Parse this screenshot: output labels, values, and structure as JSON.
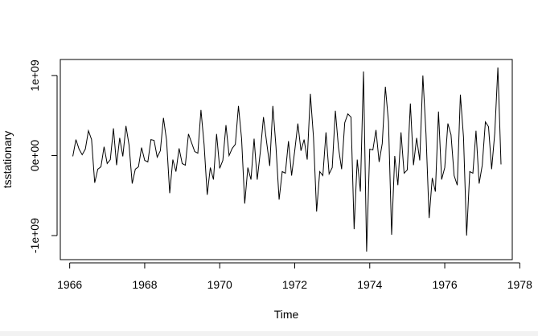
{
  "chart_data": {
    "type": "line",
    "title": "",
    "xlabel": "Time",
    "ylabel": "tsstationary",
    "x_ticks": [
      1966,
      1968,
      1970,
      1972,
      1974,
      1976,
      1978
    ],
    "x_tick_labels": [
      "1966",
      "1968",
      "1970",
      "1972",
      "1974",
      "1976",
      "1978"
    ],
    "y_ticks": [
      -1000000000,
      0,
      1000000000
    ],
    "y_tick_labels": [
      "-1e+09",
      "0e+00",
      "1e+09"
    ],
    "xlim": [
      1965.75,
      1977.8
    ],
    "ylim": [
      -1300000000,
      1200000000
    ],
    "grid": false,
    "legend": "none",
    "series_color": "#000000",
    "start": 1966.0833,
    "step": 0.0833333,
    "values": [
      -10000000,
      200000000,
      80000000,
      10000000,
      80000000,
      310000000,
      200000000,
      -340000000,
      -170000000,
      -140000000,
      110000000,
      -100000000,
      -50000000,
      340000000,
      -120000000,
      220000000,
      -10000000,
      370000000,
      130000000,
      -350000000,
      -170000000,
      -140000000,
      100000000,
      -60000000,
      -80000000,
      200000000,
      190000000,
      -20000000,
      60000000,
      470000000,
      190000000,
      -470000000,
      -50000000,
      -200000000,
      90000000,
      -100000000,
      -120000000,
      270000000,
      160000000,
      50000000,
      30000000,
      570000000,
      140000000,
      -490000000,
      -150000000,
      -300000000,
      270000000,
      -160000000,
      -60000000,
      380000000,
      0,
      90000000,
      140000000,
      620000000,
      210000000,
      -600000000,
      -150000000,
      -300000000,
      210000000,
      -300000000,
      50000000,
      480000000,
      170000000,
      -130000000,
      620000000,
      110000000,
      -550000000,
      -200000000,
      -220000000,
      180000000,
      -250000000,
      60000000,
      400000000,
      60000000,
      200000000,
      -50000000,
      770000000,
      230000000,
      -700000000,
      -200000000,
      -250000000,
      290000000,
      -230000000,
      -150000000,
      560000000,
      100000000,
      -170000000,
      410000000,
      520000000,
      480000000,
      -920000000,
      -50000000,
      -450000000,
      1050000000,
      -1200000000,
      80000000,
      70000000,
      320000000,
      -80000000,
      150000000,
      860000000,
      420000000,
      -990000000,
      -5000000,
      -370000000,
      290000000,
      -220000000,
      -180000000,
      650000000,
      -120000000,
      220000000,
      -60000000,
      1000000000,
      270000000,
      -780000000,
      -280000000,
      -450000000,
      550000000,
      -300000000,
      -150000000,
      400000000,
      260000000,
      -250000000,
      -370000000,
      760000000,
      230000000,
      -1000000000,
      -200000000,
      -220000000,
      310000000,
      -350000000,
      -120000000,
      420000000,
      360000000,
      -170000000,
      280000000,
      1100000000,
      -110000000
    ]
  }
}
